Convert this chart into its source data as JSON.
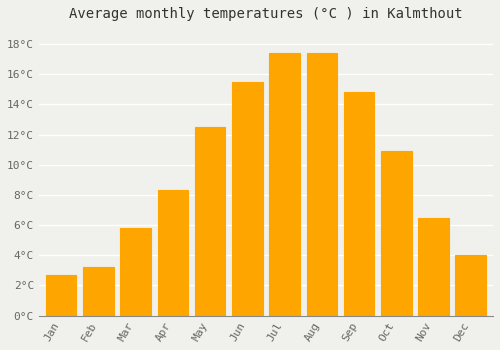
{
  "title": "Average monthly temperatures (°C ) in Kalmthout",
  "months": [
    "Jan",
    "Feb",
    "Mar",
    "Apr",
    "May",
    "Jun",
    "Jul",
    "Aug",
    "Sep",
    "Oct",
    "Nov",
    "Dec"
  ],
  "values": [
    2.7,
    3.2,
    5.8,
    8.3,
    12.5,
    15.5,
    17.4,
    17.4,
    14.8,
    10.9,
    6.5,
    4.0
  ],
  "bar_color": "#FFA500",
  "bar_edge_color": "#E8960A",
  "background_color": "#F0F0EC",
  "grid_color": "#FFFFFF",
  "ylim": [
    0,
    19
  ],
  "yticks": [
    0,
    2,
    4,
    6,
    8,
    10,
    12,
    14,
    16,
    18
  ],
  "title_fontsize": 10,
  "tick_fontsize": 8,
  "font_family": "monospace",
  "bar_width": 0.82
}
